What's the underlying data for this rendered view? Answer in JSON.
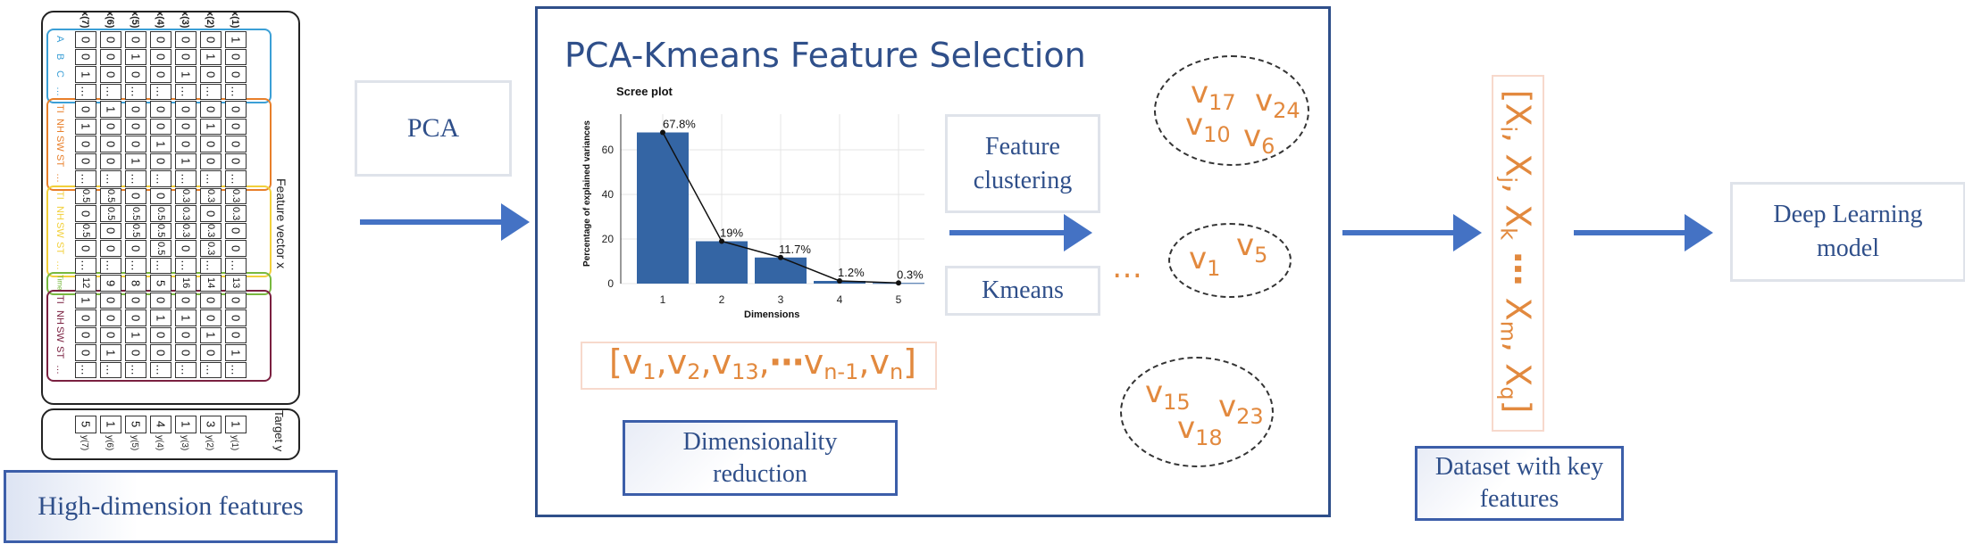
{
  "matrix": {
    "column_headers": [
      "x(7)",
      "x(6)",
      "x(5)",
      "x(4)",
      "x(3)",
      "x(2)",
      "x(1)"
    ],
    "row_labels": [
      "A",
      "B",
      "C",
      "…",
      "TI",
      "NH",
      "SW",
      "ST",
      "…",
      "TI",
      "NH",
      "SW",
      "ST",
      "…",
      "Time",
      "TI",
      "NH",
      "SW",
      "ST",
      "…"
    ],
    "groups": [
      {
        "name": "group-1",
        "color": "#3b9fd6",
        "start": 0,
        "end": 4
      },
      {
        "name": "group-2",
        "color": "#e87f2a",
        "start": 4,
        "end": 9
      },
      {
        "name": "group-3",
        "color": "#f2d03b",
        "start": 9,
        "end": 14
      },
      {
        "name": "group-4",
        "color": "#78b83f",
        "start": 14,
        "end": 15
      },
      {
        "name": "group-5",
        "color": "#7a2040",
        "start": 15,
        "end": 20
      }
    ],
    "cells": [
      [
        "0",
        "0",
        "0",
        "0",
        "0",
        "0",
        "1"
      ],
      [
        "0",
        "0",
        "1",
        "0",
        "0",
        "1",
        "0"
      ],
      [
        "1",
        "0",
        "0",
        "0",
        "1",
        "0",
        "0"
      ],
      [
        "…",
        "…",
        "…",
        "…",
        "…",
        "…",
        "…"
      ],
      [
        "0",
        "1",
        "0",
        "0",
        "0",
        "0",
        "0"
      ],
      [
        "1",
        "0",
        "0",
        "0",
        "0",
        "1",
        "0"
      ],
      [
        "0",
        "0",
        "0",
        "1",
        "0",
        "0",
        "0"
      ],
      [
        "0",
        "0",
        "1",
        "0",
        "1",
        "0",
        "0"
      ],
      [
        "…",
        "…",
        "…",
        "…",
        "…",
        "…",
        "…"
      ],
      [
        "0.5",
        "0.5",
        "0",
        "0",
        "0.3",
        "0.3",
        "0.3"
      ],
      [
        "0",
        "0.5",
        "0.5",
        "0.5",
        "0.3",
        "0",
        "0.3"
      ],
      [
        "0.5",
        "0",
        "0.5",
        "0.5",
        "0.3",
        "0.3",
        "0"
      ],
      [
        "0",
        "0",
        "0",
        "0.5",
        "0",
        "0.3",
        "0"
      ],
      [
        "…",
        "…",
        "…",
        "…",
        "…",
        "…",
        "…"
      ],
      [
        "12",
        "9",
        "8",
        "5",
        "16",
        "14",
        "13"
      ],
      [
        "1",
        "0",
        "0",
        "0",
        "0",
        "0",
        "0"
      ],
      [
        "0",
        "0",
        "0",
        "1",
        "1",
        "0",
        "0"
      ],
      [
        "0",
        "0",
        "1",
        "0",
        "0",
        "1",
        "0"
      ],
      [
        "0",
        "1",
        "0",
        "0",
        "0",
        "0",
        "1"
      ],
      [
        "…",
        "…",
        "…",
        "…",
        "…",
        "…",
        "…"
      ]
    ],
    "feature_vector_label": "Feature vector x",
    "target_label": "Target y",
    "target_values": [
      "5",
      "1",
      "5",
      "4",
      "1",
      "3",
      "1"
    ],
    "target_subs": [
      "y(7)",
      "y(6)",
      "y(5)",
      "y(4)",
      "y(3)",
      "y(2)",
      "y(1)"
    ]
  },
  "high_dim_label": "High-dimension features",
  "pca_label": "PCA",
  "main_title": "PCA-Kmeans Feature Selection",
  "chart_data": {
    "type": "bar",
    "title": "Scree plot",
    "xlabel": "Dimensions",
    "ylabel": "Percentage of explained variances",
    "categories": [
      "1",
      "2",
      "3",
      "4",
      "5"
    ],
    "values": [
      67.8,
      19,
      11.7,
      1.2,
      0.3
    ],
    "data_labels": [
      "67.8%",
      "19%",
      "11.7%",
      "1.2%",
      "0.3%"
    ],
    "yticks": [
      "0",
      "20",
      "40",
      "60"
    ],
    "ylim": [
      0,
      72
    ],
    "bar_color": "#3465a4",
    "line": true,
    "grid": true
  },
  "vector_list": {
    "items": [
      {
        "base": "v",
        "sub": "1"
      },
      {
        "base": "v",
        "sub": "2"
      },
      {
        "base": "v",
        "sub": "13"
      },
      {
        "base": "v",
        "sub": "n-1"
      },
      {
        "base": "v",
        "sub": "n"
      }
    ],
    "open_bracket": "[",
    "close_bracket": "]",
    "comma": ",",
    "ellipsis": "⋯"
  },
  "dimensionality_reduction_label": "Dimensionality reduction",
  "feature_clustering_label": "Feature clustering",
  "kmeans_label": "Kmeans",
  "cluster_dots": "…",
  "clusters": {
    "c1": {
      "base": "v",
      "subs": [
        "17",
        "24",
        "10",
        "6"
      ]
    },
    "c2": {
      "base": "v",
      "subs": [
        "1",
        "5"
      ]
    },
    "c3": {
      "base": "v",
      "subs": [
        "15",
        "23",
        "18"
      ]
    }
  },
  "key_features": {
    "base": "X",
    "items": [
      "i",
      "j",
      "k",
      "m",
      "q"
    ],
    "open_bracket": "[",
    "close_bracket": "]",
    "ellipsis": "⋯",
    "comma": ","
  },
  "dataset_label": "Dataset with key features",
  "deep_learning_label": "Deep Learning model"
}
